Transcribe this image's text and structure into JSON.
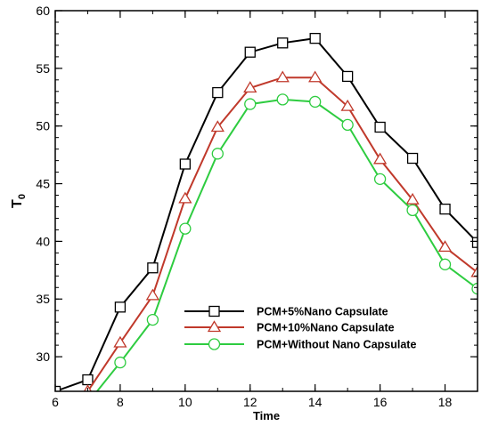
{
  "chart_data": {
    "type": "line",
    "title": "",
    "xlabel": "Time",
    "ylabel": "T",
    "ylabel_subscript": "0",
    "xlim": [
      6,
      19
    ],
    "ylim": [
      27,
      60
    ],
    "x_ticks": [
      6,
      8,
      10,
      12,
      14,
      16,
      18
    ],
    "y_ticks": [
      30,
      35,
      40,
      45,
      50,
      55,
      60
    ],
    "legend_position": "bottom-right",
    "grid": false,
    "x": [
      6,
      7,
      8,
      9,
      10,
      11,
      12,
      13,
      14,
      15,
      16,
      17,
      18,
      19
    ],
    "series": [
      {
        "name": "PCM+5%Nano Capsulate",
        "color": "#000000",
        "marker": "square",
        "values": [
          27.0,
          28.0,
          34.3,
          37.7,
          46.7,
          52.9,
          56.4,
          57.2,
          57.6,
          54.3,
          49.9,
          47.2,
          42.8,
          39.9
        ]
      },
      {
        "name": "PCM+10%Nano Capsulate",
        "color": "#c0392b",
        "marker": "triangle",
        "values": [
          26.0,
          27.0,
          31.2,
          35.3,
          43.7,
          49.9,
          53.3,
          54.2,
          54.2,
          51.7,
          47.1,
          43.6,
          39.5,
          37.3
        ]
      },
      {
        "name": "PCM+Without Nano Capsulate",
        "color": "#2ecc40",
        "marker": "circle",
        "values": [
          25.0,
          26.0,
          29.5,
          33.2,
          41.1,
          47.6,
          51.9,
          52.3,
          52.1,
          50.1,
          45.4,
          42.7,
          38.0,
          35.9
        ]
      }
    ]
  }
}
